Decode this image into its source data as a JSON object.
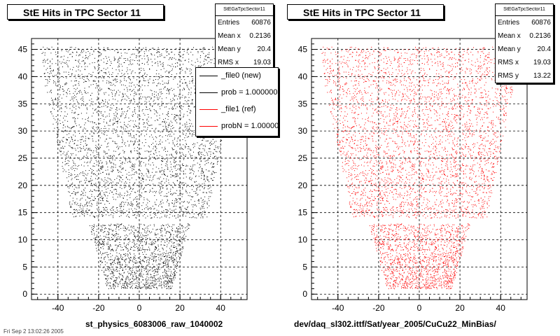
{
  "chart_data": [
    {
      "type": "scatter",
      "title": "StE Hits in TPC Sector 11",
      "xlabel": "st_physics_6083006_raw_1040002",
      "ylabel": "",
      "xlim": [
        -53,
        53
      ],
      "ylim": [
        -1,
        47
      ],
      "x_ticks": [
        -40,
        -20,
        0,
        20,
        40
      ],
      "y_ticks": [
        0,
        5,
        10,
        15,
        20,
        25,
        30,
        35,
        40,
        45
      ],
      "grid": true,
      "color": "#000000",
      "stats": {
        "name": "StEGaTpcSector11",
        "rows": [
          {
            "label": "Entries",
            "value": "60876"
          },
          {
            "label": "Mean x",
            "value": "0.2136"
          },
          {
            "label": "Mean y",
            "value": "20.4"
          },
          {
            "label": "RMS x",
            "value": "19.03"
          }
        ]
      },
      "legend": [
        {
          "label": "_file0 (new)",
          "color": "#000000"
        },
        {
          "label": "prob = 1.000000",
          "color": "#000000"
        },
        {
          "label": "_file1 (ref)",
          "color": "#ff0000"
        },
        {
          "label": "probN = 1.000000",
          "color": "#ff0000"
        }
      ]
    },
    {
      "type": "scatter",
      "title": "StE Hits in TPC Sector 11",
      "xlabel": "dev/daq_sl302.ittf/Sat/year_2005/CuCu22_MinBias/",
      "ylabel": "",
      "xlim": [
        -53,
        53
      ],
      "ylim": [
        -1,
        47
      ],
      "x_ticks": [
        -40,
        -20,
        0,
        20,
        40
      ],
      "y_ticks": [
        0,
        5,
        10,
        15,
        20,
        25,
        30,
        35,
        40,
        45
      ],
      "grid": true,
      "color": "#ff0000",
      "stats": {
        "name": "StEGaTpcSector11",
        "rows": [
          {
            "label": "Entries",
            "value": "60876"
          },
          {
            "label": "Mean x",
            "value": "0.2136"
          },
          {
            "label": "Mean y",
            "value": "20.4"
          },
          {
            "label": "RMS x",
            "value": "19.03"
          },
          {
            "label": "RMS y",
            "value": "13.22"
          }
        ]
      }
    }
  ],
  "footer": "Fri Sep  2 13:02:26 2005"
}
